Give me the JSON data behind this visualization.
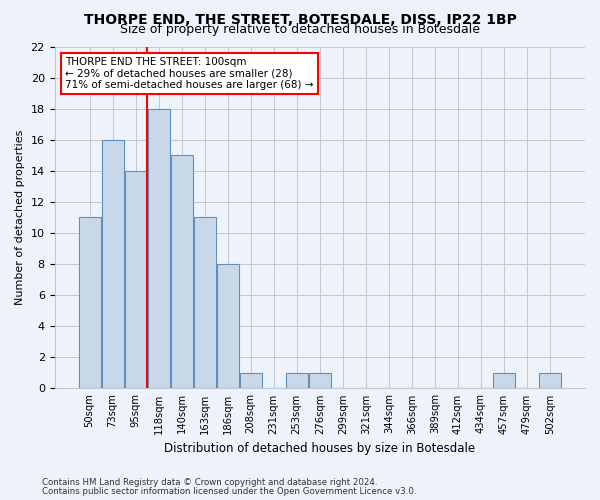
{
  "title": "THORPE END, THE STREET, BOTESDALE, DISS, IP22 1BP",
  "subtitle": "Size of property relative to detached houses in Botesdale",
  "xlabel": "Distribution of detached houses by size in Botesdale",
  "ylabel": "Number of detached properties",
  "categories": [
    "50sqm",
    "73sqm",
    "95sqm",
    "118sqm",
    "140sqm",
    "163sqm",
    "186sqm",
    "208sqm",
    "231sqm",
    "253sqm",
    "276sqm",
    "299sqm",
    "321sqm",
    "344sqm",
    "366sqm",
    "389sqm",
    "412sqm",
    "434sqm",
    "457sqm",
    "479sqm",
    "502sqm"
  ],
  "values": [
    11,
    16,
    14,
    18,
    15,
    11,
    8,
    1,
    0,
    1,
    1,
    0,
    0,
    0,
    0,
    0,
    0,
    0,
    1,
    0,
    1
  ],
  "bar_color": "#c8d8e8",
  "bar_edgecolor": "#6090c0",
  "redline_x": 2.5,
  "annotation_text": "THORPE END THE STREET: 100sqm\n← 29% of detached houses are smaller (28)\n71% of semi-detached houses are larger (68) →",
  "annotation_box_color": "white",
  "annotation_box_edgecolor": "red",
  "redline_color": "red",
  "ylim": [
    0,
    22
  ],
  "yticks": [
    0,
    2,
    4,
    6,
    8,
    10,
    12,
    14,
    16,
    18,
    20,
    22
  ],
  "footer1": "Contains HM Land Registry data © Crown copyright and database right 2024.",
  "footer2": "Contains public sector information licensed under the Open Government Licence v3.0.",
  "bg_color": "#eef2fa",
  "grid_color": "#c0c8d8",
  "title_fontsize": 10,
  "subtitle_fontsize": 9
}
